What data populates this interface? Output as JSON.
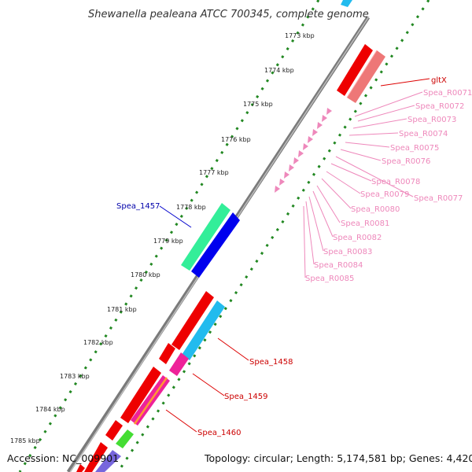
{
  "title": "Shewanella pealeana ATCC 700345, complete genome",
  "footer": {
    "accession": "Accession: NC_009901",
    "topology": "Topology: circular; Length: 5,174,581 bp; Genes: 4,420"
  },
  "ruler": {
    "unit": "kbp",
    "ticks": [
      "1773 kbp",
      "1774 kbp",
      "1775 kbp",
      "1776 kbp",
      "1777 kbp",
      "1778 kbp",
      "1779 kbp",
      "1780 kbp",
      "1781 kbp",
      "1782 kbp",
      "1783 kbp",
      "1784 kbp",
      "1785 kbp"
    ]
  },
  "genes": [
    {
      "label": "Spea_1457",
      "color": "#0000aa"
    },
    {
      "label": "gltX",
      "color": "#cc0000"
    },
    {
      "label": "Spea_1458",
      "color": "#cc0000"
    },
    {
      "label": "Spea_1459",
      "color": "#cc0000"
    },
    {
      "label": "Spea_1460",
      "color": "#cc0000"
    }
  ],
  "trnas": {
    "color": "#ee88bb",
    "labels": [
      "Spea_R0071",
      "Spea_R0072",
      "Spea_R0073",
      "Spea_R0074",
      "Spea_R0075",
      "Spea_R0076",
      "Spea_R0077",
      "Spea_R0078",
      "Spea_R0079",
      "Spea_R0080",
      "Spea_R0081",
      "Spea_R0082",
      "Spea_R0083",
      "Spea_R0084",
      "Spea_R0085"
    ]
  },
  "colors": {
    "backbone": "#888888",
    "ruler_dots": "#228822",
    "cds_red": "#ff0000",
    "cds_light_red": "#ee7777",
    "cds_cyan": "#22bbee",
    "cds_green": "#33ee99",
    "cds_blue": "#0000ee",
    "cds_magenta": "#ee2299",
    "cds_orange": "#ff9933",
    "cds_lime": "#44dd33"
  }
}
